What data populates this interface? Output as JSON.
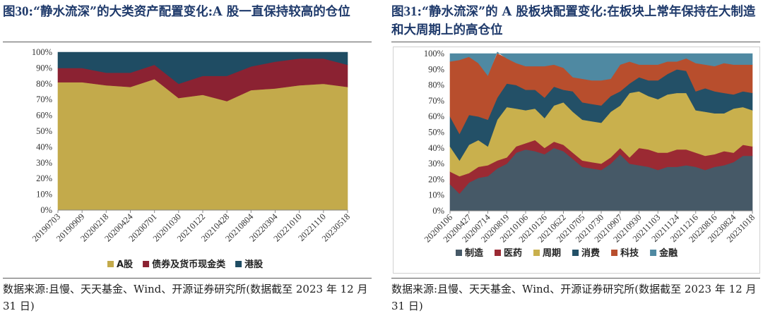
{
  "panels": [
    {
      "title_prefix": "图",
      "title_number": "30",
      "title_text": ":“静水流深”的大类资产配置变化:A 股一直保持较高的仓位",
      "source": "数据来源:且慢、天天基金、Wind、开源证券研究所(数据截至 2023 年 12 月 31 日)"
    },
    {
      "title_prefix": "图",
      "title_number": "31",
      "title_text": ":“静水流深”的 A 股板块配置变化:在板块上常年保持在大制造和大周期上的高仓位",
      "source": "数据来源:且慢、天天基金、Wind、开源证券研究所(数据截至 2023 年 12 月 31 日)"
    }
  ],
  "chart_data": [
    {
      "type": "area",
      "stacked": true,
      "x_labels": [
        "20190703",
        "20190909",
        "20200218",
        "20200424",
        "20200701",
        "20201030",
        "20210122",
        "20210428",
        "20210804",
        "20220304",
        "20221010",
        "20221110",
        "20230518"
      ],
      "ylim": [
        0,
        100
      ],
      "y_ticks": [
        "0%",
        "10%",
        "20%",
        "30%",
        "40%",
        "50%",
        "60%",
        "70%",
        "80%",
        "90%",
        "100%"
      ],
      "legend_position": "bottom",
      "series": [
        {
          "name": "A股",
          "color": "#c3aa4b",
          "values": [
            81,
            81,
            79,
            78,
            83,
            71,
            73,
            69,
            76,
            77,
            79,
            80,
            78
          ]
        },
        {
          "name": "债券及货币现金类",
          "color": "#8b2232",
          "values": [
            9,
            9,
            8,
            9,
            9,
            9,
            12,
            16,
            15,
            17,
            17,
            16,
            14
          ]
        },
        {
          "name": "港股",
          "color": "#1f4c63",
          "values": [
            10,
            10,
            13,
            13,
            8,
            20,
            15,
            15,
            9,
            6,
            4,
            4,
            8
          ]
        }
      ]
    },
    {
      "type": "area",
      "stacked": true,
      "x_labels": [
        "20200106",
        "20200427",
        "20200714",
        "20200819",
        "20210106",
        "20210126",
        "20210622",
        "20210705",
        "20210730",
        "20210907",
        "20210930",
        "20211103",
        "20211124",
        "20211216",
        "20220816",
        "20230824",
        "20231018"
      ],
      "ylim": [
        0,
        100
      ],
      "y_ticks": [
        "0%",
        "10%",
        "20%",
        "30%",
        "40%",
        "50%",
        "60%",
        "70%",
        "80%",
        "90%",
        "100%"
      ],
      "legend_position": "bottom",
      "series": [
        {
          "name": "制造",
          "color": "#465967",
          "values": [
            17,
            11,
            18,
            21,
            22,
            27,
            30,
            37,
            39,
            38,
            36,
            40,
            38,
            33,
            28,
            27,
            26,
            30,
            36,
            30,
            29,
            28,
            26,
            28,
            28,
            29,
            28,
            26,
            28,
            29,
            31,
            35,
            35
          ]
        },
        {
          "name": "医药",
          "color": "#9b2a33",
          "values": [
            8,
            11,
            6,
            7,
            7,
            5,
            4,
            4,
            4,
            7,
            4,
            4,
            4,
            4,
            4,
            4,
            4,
            4,
            4,
            4,
            11,
            11,
            11,
            9,
            11,
            10,
            9,
            9,
            8,
            9,
            6,
            7,
            6
          ]
        },
        {
          "name": "周期",
          "color": "#c9b04d",
          "values": [
            16,
            10,
            18,
            17,
            12,
            26,
            32,
            24,
            21,
            20,
            19,
            23,
            27,
            26,
            26,
            26,
            26,
            29,
            27,
            41,
            36,
            34,
            34,
            37,
            36,
            36,
            27,
            28,
            26,
            24,
            28,
            24,
            23
          ]
        },
        {
          "name": "消费",
          "color": "#235067",
          "values": [
            19,
            17,
            19,
            15,
            17,
            14,
            15,
            15,
            13,
            12,
            13,
            12,
            8,
            13,
            11,
            11,
            11,
            10,
            9,
            6,
            9,
            10,
            12,
            13,
            15,
            14,
            12,
            15,
            14,
            13,
            9,
            10,
            11
          ]
        },
        {
          "name": "科技",
          "color": "#b84e2d",
          "values": [
            35,
            47,
            37,
            34,
            28,
            29,
            16,
            14,
            15,
            15,
            20,
            14,
            14,
            9,
            15,
            15,
            16,
            11,
            17,
            14,
            8,
            10,
            10,
            8,
            5,
            8,
            18,
            15,
            16,
            19,
            19,
            17,
            18
          ]
        },
        {
          "name": "金融",
          "color": "#4f89a2",
          "values": [
            5,
            4,
            2,
            6,
            14,
            0,
            3,
            6,
            8,
            8,
            8,
            7,
            9,
            15,
            16,
            17,
            17,
            16,
            7,
            5,
            7,
            7,
            7,
            5,
            5,
            3,
            6,
            7,
            8,
            6,
            7,
            7,
            7
          ]
        }
      ]
    }
  ]
}
